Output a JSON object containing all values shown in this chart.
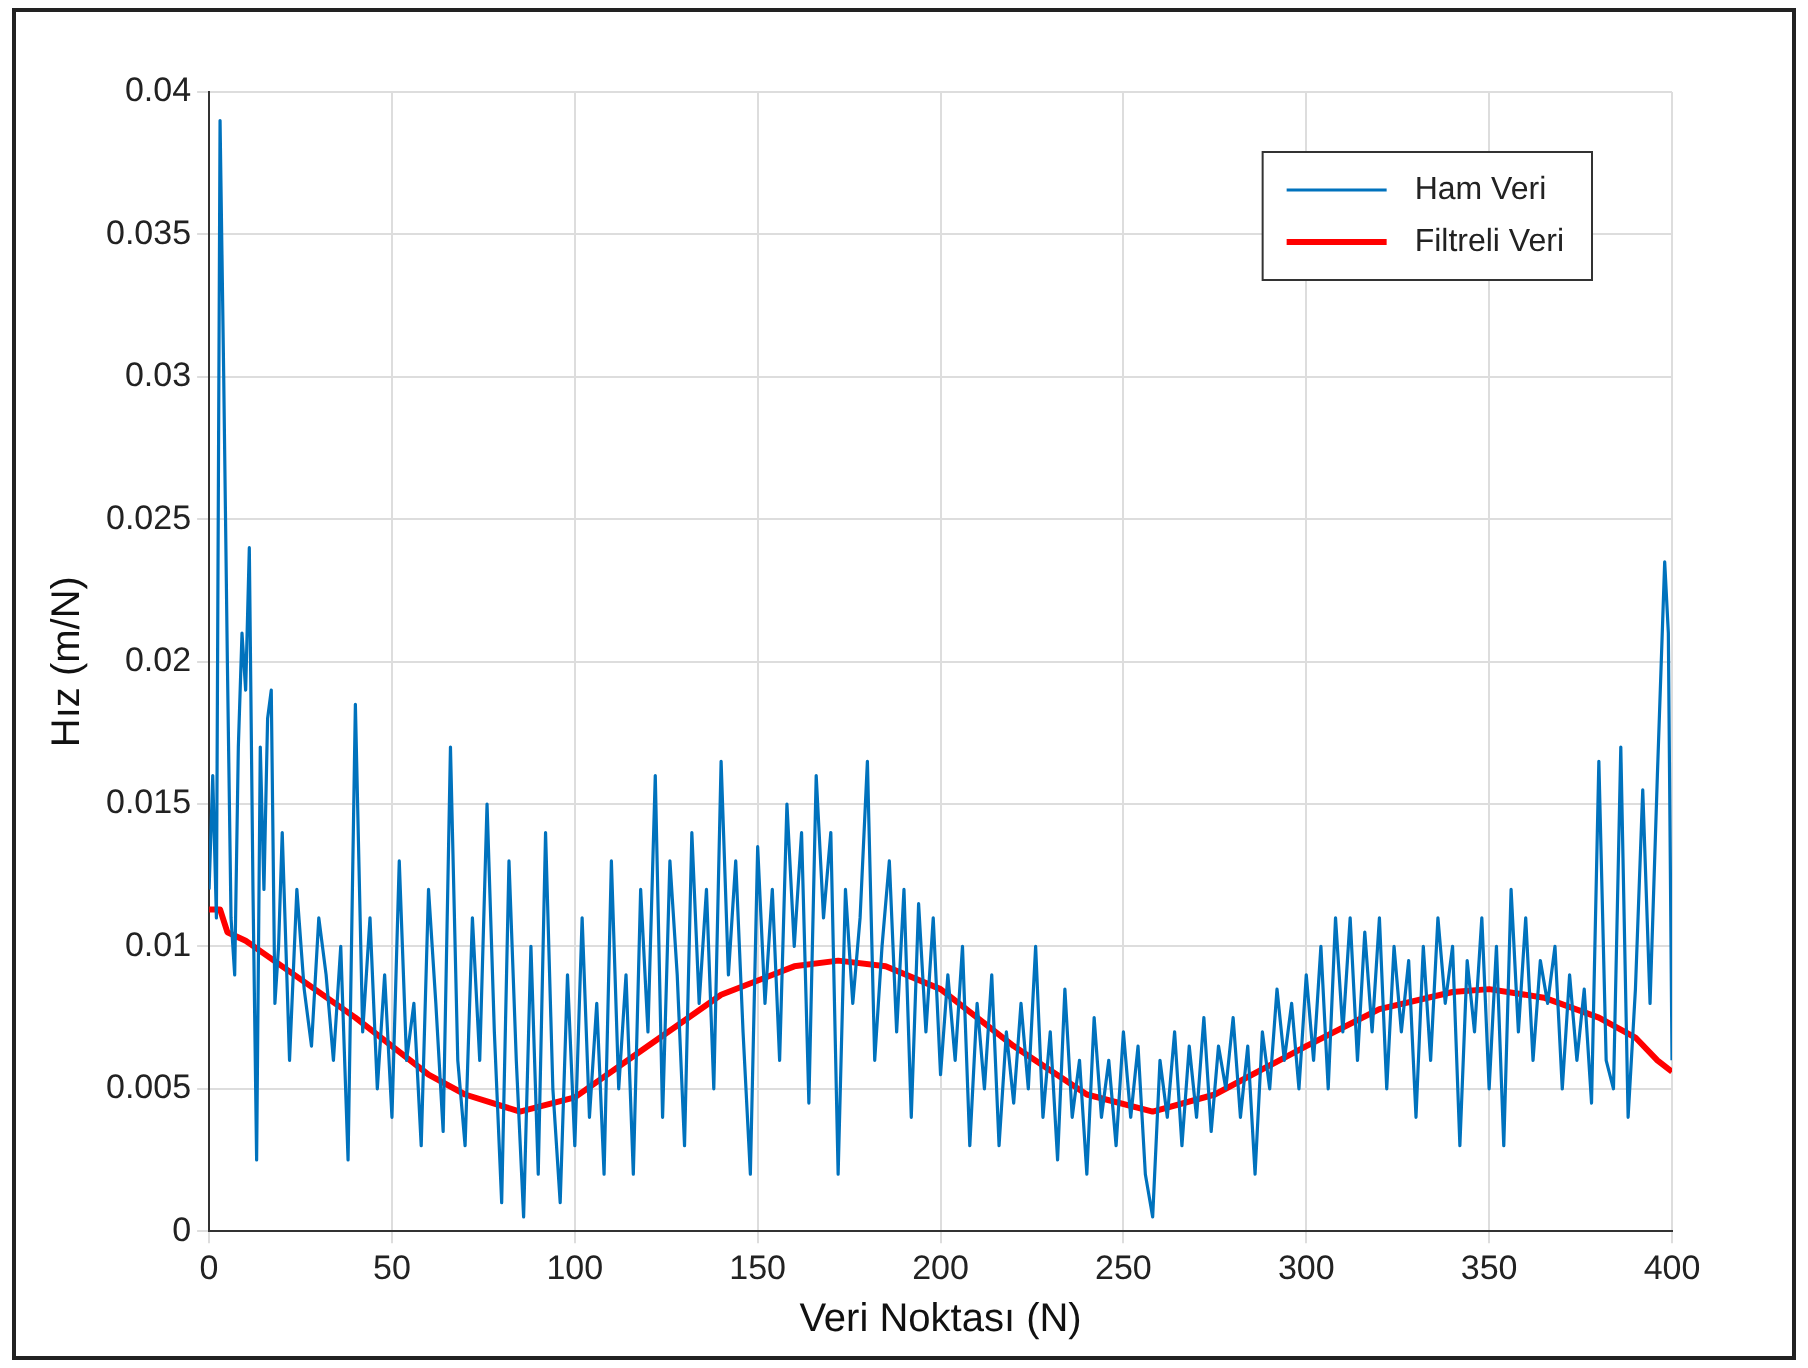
{
  "chart_data": {
    "type": "line",
    "xlabel": "Veri Noktası (N)",
    "ylabel": "Hız (m/N)",
    "xlim": [
      0,
      400
    ],
    "xticks": [
      0,
      50,
      100,
      150,
      200,
      250,
      300,
      350,
      400
    ],
    "ylim": [
      0,
      0.04
    ],
    "yticks": [
      0,
      0.005,
      0.01,
      0.015,
      0.02,
      0.025,
      0.03,
      0.035,
      0.04
    ],
    "grid": true,
    "legend": "top right",
    "marker": "none",
    "series": [
      {
        "name": "Ham Veri",
        "color": "#0072bd",
        "x": [
          0,
          1,
          2,
          3,
          4,
          5,
          6,
          7,
          8,
          9,
          10,
          11,
          12,
          13,
          14,
          15,
          16,
          17,
          18,
          19,
          20,
          22,
          24,
          26,
          28,
          30,
          32,
          34,
          36,
          38,
          40,
          42,
          44,
          46,
          48,
          50,
          52,
          54,
          56,
          58,
          60,
          62,
          64,
          66,
          68,
          70,
          72,
          74,
          76,
          78,
          80,
          82,
          84,
          86,
          88,
          90,
          92,
          94,
          96,
          98,
          100,
          102,
          104,
          106,
          108,
          110,
          112,
          114,
          116,
          118,
          120,
          122,
          124,
          126,
          128,
          130,
          132,
          134,
          136,
          138,
          140,
          142,
          144,
          146,
          148,
          150,
          152,
          154,
          156,
          158,
          160,
          162,
          164,
          166,
          168,
          170,
          172,
          174,
          176,
          178,
          180,
          182,
          184,
          186,
          188,
          190,
          192,
          194,
          196,
          198,
          200,
          202,
          204,
          206,
          208,
          210,
          212,
          214,
          216,
          218,
          220,
          222,
          224,
          226,
          228,
          230,
          232,
          234,
          236,
          238,
          240,
          242,
          244,
          246,
          248,
          250,
          252,
          254,
          256,
          258,
          260,
          262,
          264,
          266,
          268,
          270,
          272,
          274,
          276,
          278,
          280,
          282,
          284,
          286,
          288,
          290,
          292,
          294,
          296,
          298,
          300,
          302,
          304,
          306,
          308,
          310,
          312,
          314,
          316,
          318,
          320,
          322,
          324,
          326,
          328,
          330,
          332,
          334,
          336,
          338,
          340,
          342,
          344,
          346,
          348,
          350,
          352,
          354,
          356,
          358,
          360,
          362,
          364,
          366,
          368,
          370,
          372,
          374,
          376,
          378,
          380,
          382,
          384,
          386,
          388,
          390,
          392,
          394,
          396,
          398,
          399,
          400
        ],
        "values": [
          0.012,
          0.016,
          0.011,
          0.039,
          0.03,
          0.02,
          0.011,
          0.009,
          0.017,
          0.021,
          0.019,
          0.024,
          0.012,
          0.0025,
          0.017,
          0.012,
          0.018,
          0.019,
          0.008,
          0.01,
          0.014,
          0.006,
          0.012,
          0.0085,
          0.0065,
          0.011,
          0.009,
          0.006,
          0.01,
          0.0025,
          0.0185,
          0.007,
          0.011,
          0.005,
          0.009,
          0.004,
          0.013,
          0.006,
          0.008,
          0.003,
          0.012,
          0.008,
          0.0035,
          0.017,
          0.006,
          0.003,
          0.011,
          0.006,
          0.015,
          0.007,
          0.001,
          0.013,
          0.006,
          0.0005,
          0.01,
          0.002,
          0.014,
          0.005,
          0.001,
          0.009,
          0.003,
          0.011,
          0.004,
          0.008,
          0.002,
          0.013,
          0.005,
          0.009,
          0.002,
          0.012,
          0.007,
          0.016,
          0.004,
          0.013,
          0.009,
          0.003,
          0.014,
          0.008,
          0.012,
          0.005,
          0.0165,
          0.009,
          0.013,
          0.007,
          0.002,
          0.0135,
          0.008,
          0.012,
          0.006,
          0.015,
          0.01,
          0.014,
          0.0045,
          0.016,
          0.011,
          0.014,
          0.002,
          0.012,
          0.008,
          0.011,
          0.0165,
          0.006,
          0.01,
          0.013,
          0.007,
          0.012,
          0.004,
          0.0115,
          0.007,
          0.011,
          0.0055,
          0.009,
          0.006,
          0.01,
          0.003,
          0.008,
          0.005,
          0.009,
          0.003,
          0.007,
          0.0045,
          0.008,
          0.005,
          0.01,
          0.004,
          0.007,
          0.0025,
          0.0085,
          0.004,
          0.006,
          0.002,
          0.0075,
          0.004,
          0.006,
          0.003,
          0.007,
          0.004,
          0.0065,
          0.002,
          0.0005,
          0.006,
          0.004,
          0.007,
          0.003,
          0.0065,
          0.004,
          0.0075,
          0.0035,
          0.0065,
          0.005,
          0.0075,
          0.004,
          0.0065,
          0.002,
          0.007,
          0.005,
          0.0085,
          0.006,
          0.008,
          0.005,
          0.009,
          0.006,
          0.01,
          0.005,
          0.011,
          0.007,
          0.011,
          0.006,
          0.0105,
          0.007,
          0.011,
          0.005,
          0.01,
          0.007,
          0.0095,
          0.004,
          0.01,
          0.006,
          0.011,
          0.008,
          0.01,
          0.003,
          0.0095,
          0.007,
          0.011,
          0.005,
          0.01,
          0.003,
          0.012,
          0.007,
          0.011,
          0.006,
          0.0095,
          0.008,
          0.01,
          0.005,
          0.009,
          0.006,
          0.0085,
          0.0045,
          0.0165,
          0.006,
          0.005,
          0.017,
          0.004,
          0.0085,
          0.0155,
          0.008,
          0.016,
          0.0235,
          0.021,
          0.006
        ]
      },
      {
        "name": "Filtreli Veri",
        "color": "#ff0000",
        "x": [
          0,
          3,
          5,
          10,
          20,
          40,
          60,
          70,
          85,
          100,
          120,
          140,
          160,
          172,
          185,
          200,
          220,
          240,
          258,
          275,
          300,
          320,
          340,
          350,
          365,
          380,
          390,
          396,
          400
        ],
        "values": [
          0.0113,
          0.0113,
          0.0105,
          0.0102,
          0.0093,
          0.0075,
          0.0055,
          0.0048,
          0.0042,
          0.0047,
          0.0065,
          0.0083,
          0.0093,
          0.0095,
          0.0093,
          0.0085,
          0.0065,
          0.0048,
          0.0042,
          0.0048,
          0.0065,
          0.0078,
          0.0084,
          0.0085,
          0.0082,
          0.0075,
          0.0068,
          0.006,
          0.0056
        ]
      }
    ]
  }
}
